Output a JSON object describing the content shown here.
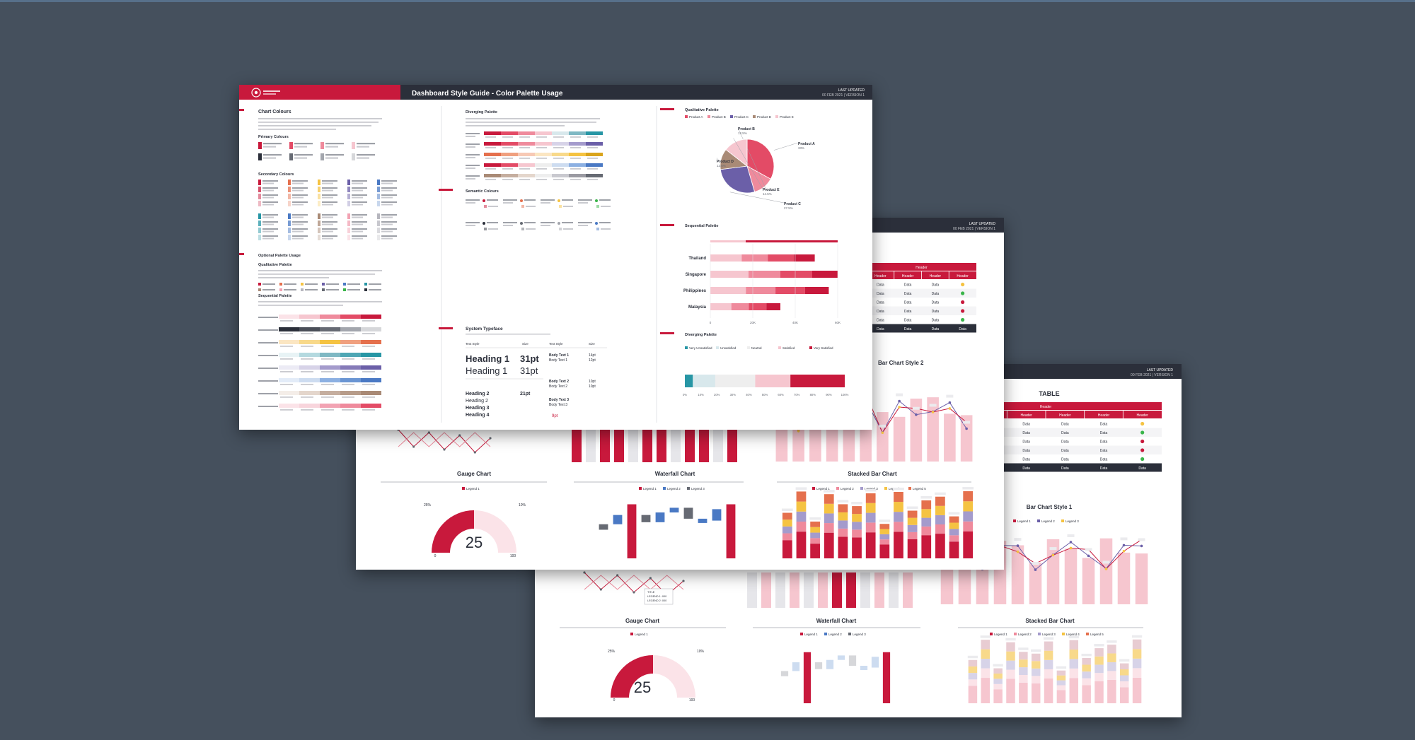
{
  "front": {
    "title": "Dashboard Style Guide - Color Palette Usage",
    "updated": [
      "LAST UPDATED",
      "00 FEB 2021 | VERSION 1"
    ],
    "col1": {
      "sections": [
        "Chart Colours",
        "Primary Colours",
        "Secondary Colours",
        "Optional Palette Usage",
        "Qualitative Palette",
        "Sequential Palette"
      ],
      "primary_colors": [
        "#c8193c",
        "#e34b66",
        "#ef8a9c",
        "#f6c6cf",
        "#2b2f3a",
        "#666a73",
        "#a3a6ad",
        "#d6d7da"
      ],
      "secondary_colors": [
        "#c8193c",
        "#e5704d",
        "#f5c342",
        "#6b5fa8",
        "#4a79c4",
        "#2796a5",
        "#4a79c4",
        "#a98a76",
        "#f2a3b3",
        "#b6b6be"
      ]
    },
    "col2": {
      "sections": [
        "Diverging Palette",
        "Semantic Colours",
        "System Typeface"
      ],
      "diverging_rows": [
        [
          "#c8193c",
          "#e34b66",
          "#ef8a9c",
          "#f6c6cf",
          "#d8e8ec",
          "#7fb8c3",
          "#2796a5"
        ],
        [
          "#c8193c",
          "#e34b66",
          "#ef8a9c",
          "#f6c6cf",
          "#d7d3e8",
          "#a49bcc",
          "#6b5fa8"
        ],
        [
          "#e5704d",
          "#f0a07f",
          "#f7c9b5",
          "#fbe6c2",
          "#f8d98a",
          "#f5c342",
          "#d9a41c"
        ],
        [
          "#c8193c",
          "#e34b66",
          "#f6c6cf",
          "#eeeeee",
          "#cddcf0",
          "#8cb0e2",
          "#4a79c4"
        ],
        [
          "#a98a76",
          "#c5ae9f",
          "#e4d6cc",
          "#eeeeee",
          "#c9c9cf",
          "#9a9aa2",
          "#666a73"
        ]
      ],
      "semantic_colors": [
        "#c8193c",
        "#e5704d",
        "#f5c342",
        "#3ab54a",
        "#2b2f3a",
        "#666a73",
        "#a3a6ad",
        "#4a79c4"
      ],
      "typeface": {
        "col_headers": [
          "Text Style",
          "Size",
          "Text Style",
          "Size"
        ],
        "heading_large": [
          "Heading 1",
          "31pt",
          "Heading 1",
          "31pt"
        ],
        "heading_small": [
          "Heading 2",
          "21pt",
          "Heading 2",
          "Heading 3",
          "Heading 4"
        ],
        "right_rows": [
          "Body Text 1",
          "Body Text 1",
          "Body Text 2",
          "Body Text 2",
          "Body Text 3",
          "Body Text 3"
        ],
        "sizes": [
          "14pt",
          "12pt",
          "10pt",
          "10pt",
          "9pt"
        ]
      }
    },
    "col3": {
      "qualitative": {
        "heading": "Qualitative Palette",
        "legend": [
          "Product A",
          "Product B",
          "Product C",
          "Product D",
          "Product E"
        ],
        "slices": [
          {
            "label": "Product A",
            "value": "33%",
            "share": 33,
            "color": "#e34b66"
          },
          {
            "label": "Product B",
            "value": "12.5%",
            "share": 12.5,
            "color": "#ef8a9c"
          },
          {
            "label": "Product C",
            "value": "27.5%",
            "share": 27.5,
            "color": "#6b5fa8"
          },
          {
            "label": "Product D",
            "value": "12.5%",
            "share": 12.5,
            "color": "#a98a76"
          },
          {
            "label": "Product E",
            "value": "14.5%",
            "share": 14.5,
            "color": "#f6c6cf"
          }
        ]
      },
      "sequential": {
        "heading": "Sequential Palette",
        "categories": [
          "Thailand",
          "Singapore",
          "Philippines",
          "Malaysia"
        ],
        "ticks": [
          "0",
          "20K",
          "40K",
          "60K"
        ],
        "colors": [
          "#f6c6cf",
          "#ef8a9c",
          "#e34b66",
          "#c8193c"
        ]
      },
      "diverging": {
        "heading": "Diverging Palette",
        "legend": [
          "Very Unsatisfied",
          "Unsatisfied",
          "Neutral",
          "Satisfied",
          "Very Satisfied"
        ],
        "segments": [
          {
            "share": 5,
            "color": "#2796a5"
          },
          {
            "share": 14,
            "color": "#d8e8ec"
          },
          {
            "share": 25,
            "color": "#eeeeee"
          },
          {
            "share": 22,
            "color": "#f6c6cf"
          },
          {
            "share": 34,
            "color": "#c8193c"
          }
        ],
        "ticks": [
          "0%",
          "10%",
          "20%",
          "30%",
          "40%",
          "50%",
          "60%",
          "70%",
          "80%",
          "90%",
          "100%"
        ]
      }
    }
  },
  "middle": {
    "updated": [
      "LAST UPDATED",
      "00 FEB 2021 | VERSION 1"
    ],
    "table": {
      "header": "Header",
      "columns": [
        "Header",
        "Header",
        "Header",
        "Header"
      ],
      "rows": [
        [
          "Data",
          "Data",
          "Data"
        ],
        [
          "Data",
          "Data",
          "Data"
        ],
        [
          "Data",
          "Data",
          "Data"
        ],
        [
          "Data",
          "Data",
          "Data"
        ],
        [
          "Data",
          "Data",
          "Data"
        ]
      ],
      "total": [
        "Data",
        "Data",
        "Data",
        "Data"
      ],
      "status_colors": [
        "#f5c342",
        "#3ab54a",
        "#c8193c",
        "#c8193c",
        "#3ab54a"
      ]
    },
    "chart_heading": "Bar Chart Style 2",
    "panels": [
      "Gauge Chart",
      "Waterfall Chart",
      "Stacked Bar Chart"
    ],
    "gauge": {
      "value": "25",
      "fill": 25,
      "left_label": "25%",
      "right_label": "10%",
      "min": "0",
      "max": "100"
    },
    "waterfall_legend": [
      "Legend 1",
      "Legend 2",
      "Legend 3"
    ],
    "stacked_legend": [
      "Legend 1",
      "Legend 2",
      "Legend 3",
      "Legend 4",
      "Legend 5"
    ],
    "gauge_legend": [
      "Legend 1"
    ]
  },
  "back": {
    "updated": [
      "LAST UPDATED",
      "00 FEB 2021 | VERSION 1"
    ],
    "table_title": "TABLE",
    "table": {
      "header": "Header",
      "columns": [
        "Header",
        "Header",
        "Header",
        "Header",
        "Header",
        "Header"
      ],
      "rows": [
        [
          "Data",
          "Data",
          "Data",
          "Data",
          "Data"
        ],
        [
          "Data",
          "Data",
          "Data",
          "Data",
          "Data"
        ],
        [
          "Data",
          "Data",
          "Data",
          "Data",
          "Data"
        ],
        [
          "Data",
          "Data",
          "Data",
          "Data",
          "Data"
        ],
        [
          "Data",
          "Data",
          "Data",
          "Data",
          "Data"
        ]
      ],
      "total": [
        "Data",
        "Data",
        "Data",
        "Data",
        "Data",
        "Data"
      ],
      "status_colors": [
        "#f5c342",
        "#3ab54a",
        "#c8193c",
        "#c8193c",
        "#3ab54a"
      ]
    },
    "chart_heading": "Bar Chart Style 1",
    "chart_legend": [
      "Legend 1",
      "Legend 2",
      "Legend 3"
    ],
    "panels": [
      "Gauge Chart",
      "Waterfall Chart",
      "Stacked Bar Chart"
    ],
    "gauge": {
      "value": "25",
      "fill": 25,
      "left_label": "25%",
      "right_label": "10%",
      "min": "0",
      "max": "100"
    },
    "gauge_legend": [
      "Legend 1"
    ],
    "waterfall_legend": [
      "Legend 1",
      "Legend 2",
      "Legend 3"
    ],
    "stacked_legend": [
      "Legend 1",
      "Legend 2",
      "Legend 3",
      "Legend 4",
      "Legend 5"
    ],
    "tooltip": [
      "TITLE",
      "LEGEND 1: 000",
      "LEGEND 2: 000"
    ]
  },
  "palette": {
    "crimson": "#c8193c",
    "pink": "#e34b66",
    "light_pink": "#f6c6cf",
    "charcoal": "#2b2f3a",
    "gray": "#a3a6ad",
    "blue": "#4a79c4",
    "yellow": "#f5c342",
    "purple": "#6b5fa8",
    "orange": "#e5704d",
    "teal": "#2796a5"
  }
}
